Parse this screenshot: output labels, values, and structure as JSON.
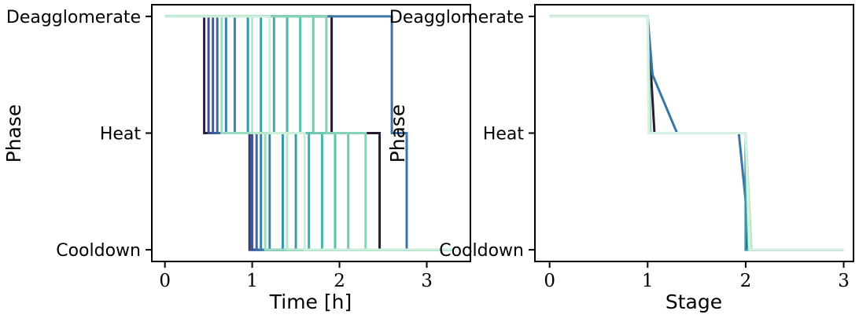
{
  "chart_data": [
    {
      "type": "line",
      "panel": "left",
      "xlabel": "Time [h]",
      "ylabel": "Phase",
      "xlim": [
        -0.15,
        3.5
      ],
      "x_ticks": [
        0,
        1,
        2,
        3
      ],
      "y_categories": [
        "Cooldown",
        "Heat",
        "Deagglomerate"
      ],
      "ylim": [
        -0.1,
        2.1
      ],
      "grid": false,
      "legend": "none",
      "series": [
        {
          "color": "#2c1e3d",
          "t_heat": 0.45,
          "t_cool": 0.97,
          "t_end": 3.3
        },
        {
          "color": "#2a1a33",
          "t_heat": 1.91,
          "t_cool": 2.46,
          "t_end": 3.3
        },
        {
          "color": "#3b4f8f",
          "t_heat": 0.5,
          "t_cool": 0.98,
          "t_end": 3.3
        },
        {
          "color": "#3c5a9a",
          "t_heat": 0.55,
          "t_cool": 1.0,
          "t_end": 3.3
        },
        {
          "color": "#3d6aa2",
          "t_heat": 0.6,
          "t_cool": 1.05,
          "t_end": 3.3
        },
        {
          "color": "#3a75a6",
          "t_heat": 2.6,
          "t_cool": 2.77,
          "t_end": 3.3
        },
        {
          "color": "#3b7fa8",
          "t_heat": 0.7,
          "t_cool": 1.1,
          "t_end": 3.3
        },
        {
          "color": "#3889a8",
          "t_heat": 0.8,
          "t_cool": 1.2,
          "t_end": 3.3
        },
        {
          "color": "#3694a9",
          "t_heat": 0.95,
          "t_cool": 1.35,
          "t_end": 3.3
        },
        {
          "color": "#39a0aa",
          "t_heat": 1.1,
          "t_cool": 1.5,
          "t_end": 3.3
        },
        {
          "color": "#3fabaa",
          "t_heat": 1.25,
          "t_cool": 1.65,
          "t_end": 3.3
        },
        {
          "color": "#4cb6ab",
          "t_heat": 1.4,
          "t_cool": 1.8,
          "t_end": 3.3
        },
        {
          "color": "#5ec2ad",
          "t_heat": 1.55,
          "t_cool": 1.95,
          "t_end": 3.3
        },
        {
          "color": "#6fcbb0",
          "t_heat": 1.7,
          "t_cool": 2.1,
          "t_end": 3.3
        },
        {
          "color": "#84d3b6",
          "t_heat": 1.85,
          "t_cool": 2.3,
          "t_end": 3.3
        },
        {
          "color": "#9cdcbf",
          "t_heat": 0.65,
          "t_cool": 1.15,
          "t_end": 3.3
        },
        {
          "color": "#b6e6cb",
          "t_heat": 1.0,
          "t_cool": 1.4,
          "t_end": 3.3
        },
        {
          "color": "#cdeed8",
          "t_heat": 1.2,
          "t_cool": 1.6,
          "t_end": 3.3
        }
      ]
    },
    {
      "type": "line",
      "panel": "right",
      "xlabel": "Stage",
      "ylabel": "Phase",
      "xlim": [
        -0.15,
        3.1
      ],
      "x_ticks": [
        0,
        1,
        2,
        3
      ],
      "y_categories": [
        "Cooldown",
        "Heat",
        "Deagglomerate"
      ],
      "ylim": [
        -0.1,
        2.1
      ],
      "grid": false,
      "legend": "none",
      "series": [
        {
          "color": "#2a1a33",
          "points": [
            [
              0,
              2
            ],
            [
              1,
              2
            ],
            [
              1.07,
              1
            ],
            [
              2,
              1
            ],
            [
              2.02,
              0
            ],
            [
              3,
              0
            ]
          ]
        },
        {
          "color": "#3a75a6",
          "points": [
            [
              0,
              2
            ],
            [
              1,
              2
            ],
            [
              1.05,
              1.5
            ],
            [
              1.3,
              1
            ],
            [
              1.93,
              1
            ],
            [
              2.05,
              0
            ],
            [
              3,
              0
            ]
          ]
        },
        {
          "color": "#3694a9",
          "points": [
            [
              0,
              2
            ],
            [
              1,
              2
            ],
            [
              1.02,
              1
            ],
            [
              2,
              1
            ],
            [
              2,
              0
            ],
            [
              3,
              0
            ]
          ]
        },
        {
          "color": "#6fcbb0",
          "points": [
            [
              0,
              2
            ],
            [
              1,
              2
            ],
            [
              1.03,
              1
            ],
            [
              2,
              1
            ],
            [
              2.03,
              0
            ],
            [
              3,
              0
            ]
          ]
        },
        {
          "color": "#b6e6cb",
          "points": [
            [
              0,
              2
            ],
            [
              1,
              2
            ],
            [
              1.02,
              1
            ],
            [
              2,
              1
            ],
            [
              2.06,
              0
            ],
            [
              3,
              0
            ]
          ]
        },
        {
          "color": "#d6f1df",
          "points": [
            [
              0,
              2
            ],
            [
              1,
              2
            ],
            [
              1.01,
              1
            ],
            [
              2,
              1
            ],
            [
              2.04,
              0
            ],
            [
              3,
              0
            ]
          ]
        }
      ]
    }
  ]
}
